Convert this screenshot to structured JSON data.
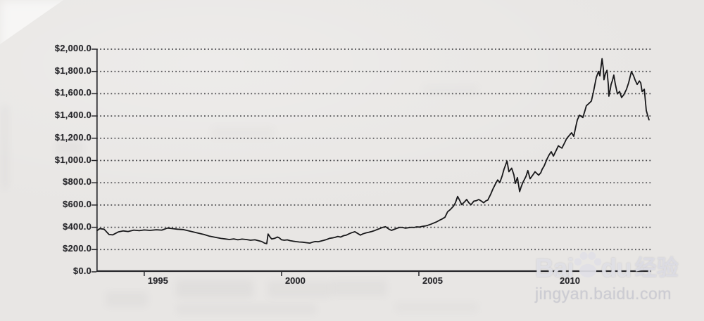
{
  "watermark": {
    "brand_left": "Bai",
    "brand_right": "du",
    "brand_suffix": "经验",
    "url": "jingyan.baidu.com",
    "paw_icon": "paw",
    "color": "#dedee4"
  },
  "colors": {
    "background": "#e8e6e4",
    "line": "#18181a",
    "grid": "#2f2f33",
    "axis": "#26262a",
    "label": "#26262a"
  },
  "chart_data": {
    "type": "line",
    "grid": "horizontal-dotted",
    "legend": "none",
    "y_ticks": [
      0,
      200,
      400,
      600,
      800,
      1000,
      1200,
      1400,
      1600,
      1800,
      2000
    ],
    "y_tick_labels": [
      "$0.0",
      "$200.0",
      "$400.0",
      "$600.0",
      "$800.0",
      "$1,000.0",
      "$1,200.0",
      "$1,400.0",
      "$1,600.0",
      "$1,800.0",
      "$2,000.0"
    ],
    "y_range": [
      0,
      2000
    ],
    "x_ticks": [
      1995,
      2000,
      2005,
      2010
    ],
    "x_tick_labels": [
      "1995",
      "2000",
      "2005",
      "2010"
    ],
    "x_range": [
      1993.26,
      2013.46
    ],
    "points": [
      [
        1993.28,
        370
      ],
      [
        1993.38,
        388
      ],
      [
        1993.54,
        383
      ],
      [
        1993.72,
        335
      ],
      [
        1993.85,
        332
      ],
      [
        1994.05,
        358
      ],
      [
        1994.23,
        368
      ],
      [
        1994.41,
        362
      ],
      [
        1994.62,
        375
      ],
      [
        1994.82,
        370
      ],
      [
        1995.0,
        376
      ],
      [
        1995.21,
        372
      ],
      [
        1995.44,
        378
      ],
      [
        1995.64,
        375
      ],
      [
        1995.85,
        393
      ],
      [
        1996.03,
        388
      ],
      [
        1996.21,
        383
      ],
      [
        1996.41,
        380
      ],
      [
        1996.67,
        365
      ],
      [
        1996.92,
        350
      ],
      [
        1997.18,
        335
      ],
      [
        1997.38,
        320
      ],
      [
        1997.59,
        310
      ],
      [
        1997.79,
        300
      ],
      [
        1997.95,
        295
      ],
      [
        1998.1,
        290
      ],
      [
        1998.26,
        296
      ],
      [
        1998.41,
        288
      ],
      [
        1998.56,
        294
      ],
      [
        1998.72,
        290
      ],
      [
        1998.87,
        284
      ],
      [
        1999.03,
        288
      ],
      [
        1999.18,
        278
      ],
      [
        1999.28,
        272
      ],
      [
        1999.38,
        258
      ],
      [
        1999.46,
        253
      ],
      [
        1999.51,
        340
      ],
      [
        1999.59,
        310
      ],
      [
        1999.64,
        295
      ],
      [
        1999.74,
        300
      ],
      [
        1999.85,
        312
      ],
      [
        1999.92,
        305
      ],
      [
        2000.0,
        288
      ],
      [
        2000.1,
        284
      ],
      [
        2000.21,
        287
      ],
      [
        2000.31,
        280
      ],
      [
        2000.41,
        276
      ],
      [
        2000.51,
        272
      ],
      [
        2000.64,
        268
      ],
      [
        2000.77,
        266
      ],
      [
        2000.9,
        262
      ],
      [
        2001.03,
        258
      ],
      [
        2001.13,
        266
      ],
      [
        2001.23,
        272
      ],
      [
        2001.33,
        270
      ],
      [
        2001.44,
        277
      ],
      [
        2001.54,
        283
      ],
      [
        2001.64,
        290
      ],
      [
        2001.74,
        300
      ],
      [
        2001.85,
        305
      ],
      [
        2001.95,
        310
      ],
      [
        2002.05,
        318
      ],
      [
        2002.15,
        312
      ],
      [
        2002.26,
        325
      ],
      [
        2002.36,
        330
      ],
      [
        2002.46,
        342
      ],
      [
        2002.56,
        352
      ],
      [
        2002.67,
        360
      ],
      [
        2002.77,
        345
      ],
      [
        2002.87,
        330
      ],
      [
        2002.97,
        342
      ],
      [
        2003.08,
        350
      ],
      [
        2003.18,
        356
      ],
      [
        2003.28,
        362
      ],
      [
        2003.38,
        370
      ],
      [
        2003.49,
        381
      ],
      [
        2003.59,
        390
      ],
      [
        2003.69,
        400
      ],
      [
        2003.79,
        405
      ],
      [
        2003.9,
        385
      ],
      [
        2004.0,
        372
      ],
      [
        2004.1,
        382
      ],
      [
        2004.21,
        392
      ],
      [
        2004.31,
        400
      ],
      [
        2004.41,
        398
      ],
      [
        2004.51,
        392
      ],
      [
        2004.62,
        396
      ],
      [
        2004.72,
        400
      ],
      [
        2004.82,
        398
      ],
      [
        2004.92,
        404
      ],
      [
        2005.03,
        402
      ],
      [
        2005.13,
        408
      ],
      [
        2005.23,
        412
      ],
      [
        2005.33,
        418
      ],
      [
        2005.44,
        428
      ],
      [
        2005.54,
        438
      ],
      [
        2005.64,
        448
      ],
      [
        2005.74,
        462
      ],
      [
        2005.85,
        475
      ],
      [
        2005.95,
        490
      ],
      [
        2006.05,
        540
      ],
      [
        2006.15,
        560
      ],
      [
        2006.26,
        590
      ],
      [
        2006.33,
        620
      ],
      [
        2006.41,
        677
      ],
      [
        2006.49,
        640
      ],
      [
        2006.56,
        603
      ],
      [
        2006.67,
        630
      ],
      [
        2006.74,
        650
      ],
      [
        2006.82,
        620
      ],
      [
        2006.9,
        603
      ],
      [
        2007.0,
        635
      ],
      [
        2007.1,
        640
      ],
      [
        2007.18,
        650
      ],
      [
        2007.28,
        635
      ],
      [
        2007.36,
        620
      ],
      [
        2007.44,
        638
      ],
      [
        2007.51,
        645
      ],
      [
        2007.62,
        700
      ],
      [
        2007.69,
        741
      ],
      [
        2007.79,
        790
      ],
      [
        2007.87,
        825
      ],
      [
        2007.95,
        804
      ],
      [
        2008.03,
        860
      ],
      [
        2008.1,
        921
      ],
      [
        2008.21,
        995
      ],
      [
        2008.28,
        899
      ],
      [
        2008.38,
        931
      ],
      [
        2008.46,
        870
      ],
      [
        2008.51,
        794
      ],
      [
        2008.59,
        847
      ],
      [
        2008.67,
        720
      ],
      [
        2008.72,
        760
      ],
      [
        2008.79,
        804
      ],
      [
        2008.9,
        857
      ],
      [
        2008.97,
        910
      ],
      [
        2009.05,
        836
      ],
      [
        2009.15,
        870
      ],
      [
        2009.23,
        899
      ],
      [
        2009.31,
        880
      ],
      [
        2009.36,
        868
      ],
      [
        2009.44,
        890
      ],
      [
        2009.49,
        921
      ],
      [
        2009.56,
        950
      ],
      [
        2009.67,
        1016
      ],
      [
        2009.74,
        1050
      ],
      [
        2009.82,
        1079
      ],
      [
        2009.9,
        1040
      ],
      [
        2010.0,
        1090
      ],
      [
        2010.08,
        1132
      ],
      [
        2010.15,
        1120
      ],
      [
        2010.21,
        1111
      ],
      [
        2010.31,
        1160
      ],
      [
        2010.38,
        1196
      ],
      [
        2010.46,
        1220
      ],
      [
        2010.56,
        1249
      ],
      [
        2010.64,
        1217
      ],
      [
        2010.72,
        1310
      ],
      [
        2010.77,
        1365
      ],
      [
        2010.85,
        1407
      ],
      [
        2010.92,
        1395
      ],
      [
        2010.97,
        1386
      ],
      [
        2011.05,
        1450
      ],
      [
        2011.1,
        1492
      ],
      [
        2011.18,
        1510
      ],
      [
        2011.28,
        1534
      ],
      [
        2011.36,
        1620
      ],
      [
        2011.46,
        1746
      ],
      [
        2011.54,
        1800
      ],
      [
        2011.59,
        1760
      ],
      [
        2011.67,
        1915
      ],
      [
        2011.72,
        1820
      ],
      [
        2011.74,
        1725
      ],
      [
        2011.79,
        1780
      ],
      [
        2011.85,
        1810
      ],
      [
        2011.9,
        1680
      ],
      [
        2011.92,
        1577
      ],
      [
        2011.97,
        1640
      ],
      [
        2012.0,
        1683
      ],
      [
        2012.05,
        1720
      ],
      [
        2012.1,
        1767
      ],
      [
        2012.15,
        1690
      ],
      [
        2012.23,
        1598
      ],
      [
        2012.31,
        1620
      ],
      [
        2012.38,
        1566
      ],
      [
        2012.46,
        1590
      ],
      [
        2012.56,
        1640
      ],
      [
        2012.64,
        1700
      ],
      [
        2012.74,
        1799
      ],
      [
        2012.82,
        1760
      ],
      [
        2012.87,
        1725
      ],
      [
        2012.95,
        1683
      ],
      [
        2013.03,
        1714
      ],
      [
        2013.08,
        1695
      ],
      [
        2013.13,
        1619
      ],
      [
        2013.21,
        1640
      ],
      [
        2013.28,
        1450
      ],
      [
        2013.33,
        1407
      ],
      [
        2013.38,
        1365
      ]
    ]
  }
}
